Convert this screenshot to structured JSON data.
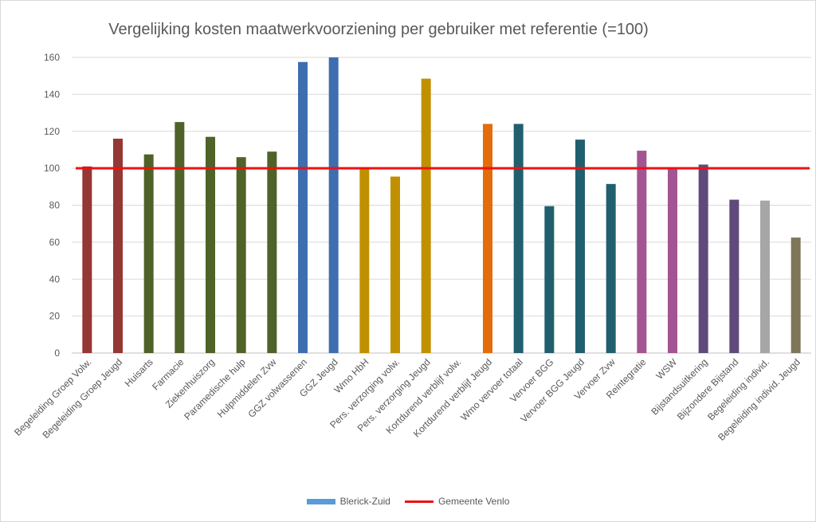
{
  "chart_data": {
    "type": "bar",
    "title": "Vergelijking kosten maatwerkvoorziening per gebruiker met referentie (=100)",
    "categories": [
      "Begeleiding Groep Volw.",
      "Begeleiding Groep Jeugd",
      "Huisarts",
      "Farmacie",
      "Ziekenhuiszorg",
      "Paramedische hulp",
      "Hulpmiddelen Zvw",
      "GGZ volwassenen",
      "GGZ Jeugd",
      "Wmo HbH",
      "Pers. verzorging volw.",
      "Pers. verzorging Jeugd",
      "Kortdurend verblijf volw.",
      "Kortdurend verblijf Jeugd",
      "Wmo vervoer totaal",
      "Vervoer BGG",
      "Vervoer BGG Jeugd",
      "Vervoer Zvw",
      "Reintegratie",
      "WSW",
      "Bijstandsuitkering",
      "Bijzondere Bijstand",
      "Begeleiding individ.",
      "Begeleiding individ. Jeugd"
    ],
    "series": [
      {
        "name": "Blerick-Zuid",
        "values": [
          101,
          116,
          107.5,
          125,
          117,
          106,
          109,
          157.5,
          160,
          100,
          95.5,
          148.5,
          0,
          124,
          124,
          79.5,
          115.5,
          91.5,
          109.5,
          100,
          102,
          83,
          82.5,
          62.5
        ],
        "colors": [
          "#953735",
          "#953735",
          "#4f6228",
          "#4f6228",
          "#4f6228",
          "#4f6228",
          "#4f6228",
          "#3e6eaf",
          "#3e6eaf",
          "#c09000",
          "#c09000",
          "#c09000",
          "#e46c0a",
          "#e46c0a",
          "#215f6e",
          "#215f6e",
          "#215f6e",
          "#215f6e",
          "#a25592",
          "#a25592",
          "#604a7b",
          "#604a7b",
          "#a6a6a6",
          "#7f7659"
        ]
      }
    ],
    "reference_line": {
      "name": "Gemeente Venlo",
      "value": 100,
      "color": "#ee1111"
    },
    "ylim": [
      0,
      160
    ],
    "yticks": [
      0,
      20,
      40,
      60,
      80,
      100,
      120,
      140,
      160
    ],
    "grid": true,
    "legend": "bottom",
    "legend_colors": {
      "series": "#5b9bd5",
      "reference": "#ee1111"
    }
  }
}
